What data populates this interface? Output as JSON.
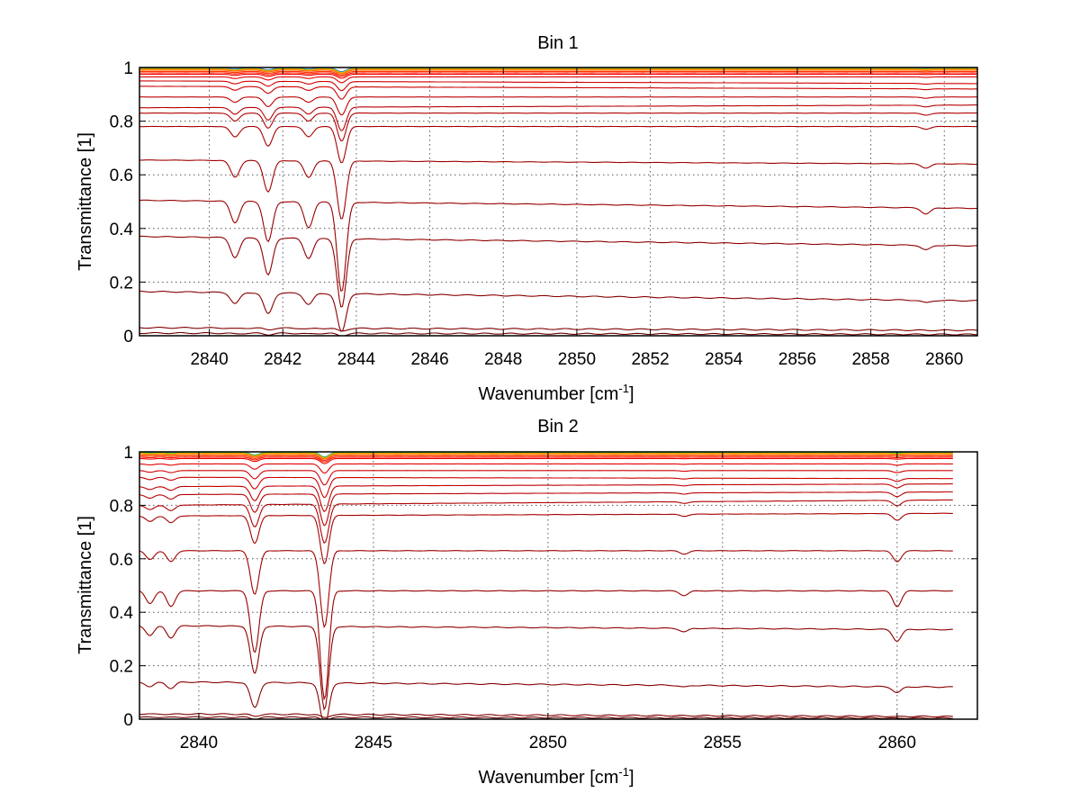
{
  "chart_data": [
    {
      "type": "line",
      "title": "Bin 1",
      "xlabel": "Wavenumber [cm",
      "xlabel_sup": "-1",
      "xlabel_end": "]",
      "ylabel": "Transmittance [1]",
      "xlim": [
        2838.1,
        2860.9
      ],
      "ylim": [
        0,
        1
      ],
      "xticks": [
        2840,
        2842,
        2844,
        2846,
        2848,
        2850,
        2852,
        2854,
        2856,
        2858,
        2860
      ],
      "yticks": [
        0,
        0.2,
        0.4,
        0.6,
        0.8,
        1
      ],
      "grid": true,
      "x_end": 2860.9,
      "absorption_lines": [
        {
          "x": 2840.7,
          "depth": 0.08
        },
        {
          "x": 2841.6,
          "depth": 0.15
        },
        {
          "x": 2842.7,
          "depth": 0.08
        },
        {
          "x": 2843.6,
          "depth": 0.28
        },
        {
          "x": 2859.5,
          "depth": 0.02
        }
      ],
      "series": [
        {
          "start": 0.998,
          "end": 0.998,
          "color": "#2060ff"
        },
        {
          "start": 0.996,
          "end": 0.996,
          "color": "#20c040"
        },
        {
          "start": 0.995,
          "end": 0.995,
          "color": "#c8c800"
        },
        {
          "start": 0.993,
          "end": 0.993,
          "color": "#ff9900"
        },
        {
          "start": 0.99,
          "end": 0.99,
          "color": "#ff6000"
        },
        {
          "start": 0.985,
          "end": 0.985,
          "color": "#ff3000"
        },
        {
          "start": 0.98,
          "end": 0.98,
          "color": "#ff1a00"
        },
        {
          "start": 0.975,
          "end": 0.975,
          "color": "#f00000"
        },
        {
          "start": 0.965,
          "end": 0.965,
          "color": "#e00000"
        },
        {
          "start": 0.95,
          "end": 0.94,
          "color": "#d00000"
        },
        {
          "start": 0.93,
          "end": 0.92,
          "color": "#cc0000"
        },
        {
          "start": 0.89,
          "end": 0.89,
          "color": "#c00000"
        },
        {
          "start": 0.85,
          "end": 0.86,
          "color": "#b80000"
        },
        {
          "start": 0.83,
          "end": 0.83,
          "color": "#b00000"
        },
        {
          "start": 0.78,
          "end": 0.78,
          "color": "#a80000"
        },
        {
          "start": 0.655,
          "end": 0.64,
          "color": "#a00000"
        },
        {
          "start": 0.505,
          "end": 0.475,
          "color": "#980000"
        },
        {
          "start": 0.37,
          "end": 0.335,
          "color": "#900000"
        },
        {
          "start": 0.165,
          "end": 0.13,
          "color": "#880000"
        },
        {
          "start": 0.03,
          "end": 0.02,
          "color": "#800000"
        },
        {
          "start": 0.01,
          "end": 0.005,
          "color": "#700000"
        }
      ]
    },
    {
      "type": "line",
      "title": "Bin 2",
      "xlabel": "Wavenumber [cm",
      "xlabel_sup": "-1",
      "xlabel_end": "]",
      "ylabel": "Transmittance [1]",
      "xlim": [
        2838.3,
        2862.3
      ],
      "ylim": [
        0,
        1
      ],
      "xticks": [
        2840,
        2845,
        2850,
        2855,
        2860
      ],
      "yticks": [
        0,
        0.2,
        0.4,
        0.6,
        0.8,
        1
      ],
      "grid": true,
      "x_end": 2861.6,
      "absorption_lines": [
        {
          "x": 2838.6,
          "depth": 0.04
        },
        {
          "x": 2839.2,
          "depth": 0.05
        },
        {
          "x": 2841.6,
          "depth": 0.2
        },
        {
          "x": 2843.6,
          "depth": 0.35
        },
        {
          "x": 2853.9,
          "depth": 0.015
        },
        {
          "x": 2860.0,
          "depth": 0.05
        }
      ],
      "series": [
        {
          "start": 0.998,
          "end": 0.998,
          "color": "#2060ff"
        },
        {
          "start": 0.997,
          "end": 0.997,
          "color": "#20c040"
        },
        {
          "start": 0.995,
          "end": 0.995,
          "color": "#c8c800"
        },
        {
          "start": 0.993,
          "end": 0.993,
          "color": "#ff9900"
        },
        {
          "start": 0.99,
          "end": 0.99,
          "color": "#ff6000"
        },
        {
          "start": 0.985,
          "end": 0.985,
          "color": "#ff3000"
        },
        {
          "start": 0.98,
          "end": 0.98,
          "color": "#ff1a00"
        },
        {
          "start": 0.975,
          "end": 0.975,
          "color": "#f00000"
        },
        {
          "start": 0.955,
          "end": 0.955,
          "color": "#e00000"
        },
        {
          "start": 0.93,
          "end": 0.93,
          "color": "#d00000"
        },
        {
          "start": 0.905,
          "end": 0.9,
          "color": "#cc0000"
        },
        {
          "start": 0.87,
          "end": 0.88,
          "color": "#c00000"
        },
        {
          "start": 0.84,
          "end": 0.85,
          "color": "#b80000"
        },
        {
          "start": 0.8,
          "end": 0.82,
          "color": "#b00000"
        },
        {
          "start": 0.76,
          "end": 0.77,
          "color": "#a80000"
        },
        {
          "start": 0.63,
          "end": 0.63,
          "color": "#a00000"
        },
        {
          "start": 0.48,
          "end": 0.48,
          "color": "#980000"
        },
        {
          "start": 0.35,
          "end": 0.335,
          "color": "#900000"
        },
        {
          "start": 0.14,
          "end": 0.12,
          "color": "#880000"
        },
        {
          "start": 0.02,
          "end": 0.01,
          "color": "#800000"
        },
        {
          "start": 0.008,
          "end": 0.004,
          "color": "#700000"
        }
      ]
    }
  ]
}
